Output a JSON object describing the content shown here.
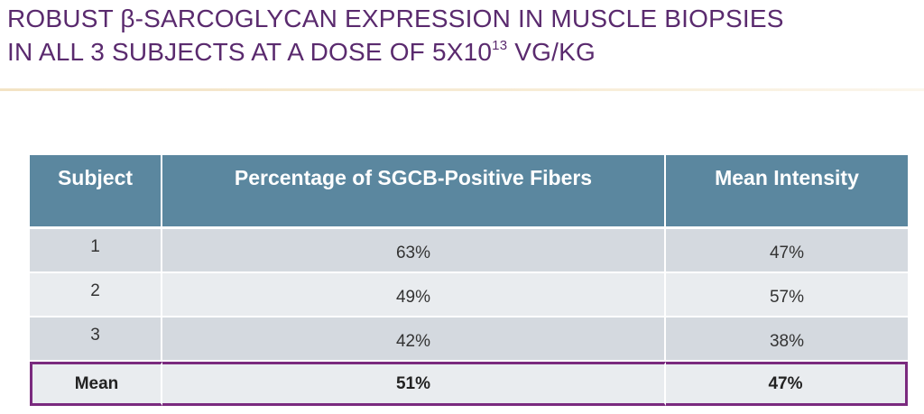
{
  "slide": {
    "title_line1": "ROBUST β-SARCOGLYCAN EXPRESSION IN MUSCLE BIOPSIES",
    "title_line2_prefix": "IN ALL 3 SUBJECTS AT A DOSE OF 5X10",
    "title_line2_sup": "13",
    "title_line2_suffix": " VG/KG",
    "title_color": "#5a2a6e"
  },
  "table": {
    "headers": [
      "Subject",
      "Percentage of SGCB-Positive Fibers",
      "Mean Intensity"
    ],
    "rows": [
      {
        "subject": "1",
        "percentage": "63%",
        "intensity": "47%"
      },
      {
        "subject": "2",
        "percentage": "49%",
        "intensity": "57%"
      },
      {
        "subject": "3",
        "percentage": "42%",
        "intensity": "38%"
      }
    ],
    "mean": {
      "label": "Mean",
      "percentage": "51%",
      "intensity": "47%"
    },
    "header_color": "#5b879f",
    "highlight_color": "#7a2a7e"
  }
}
